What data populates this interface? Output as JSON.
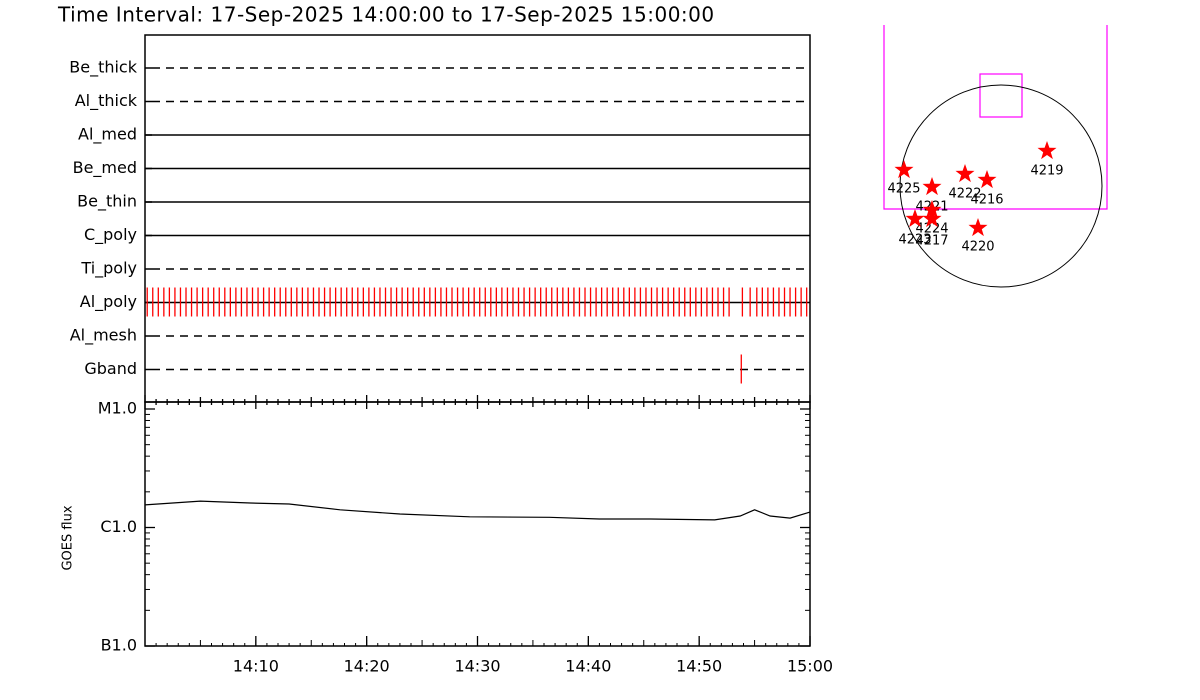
{
  "chart_data": [
    {
      "type": "timeline",
      "title": "Time Interval: 17-Sep-2025 14:00:00 to 17-Sep-2025 15:00:00",
      "categories": [
        "Be_thick",
        "Al_thick",
        "Al_med",
        "Be_med",
        "Be_thin",
        "C_poly",
        "Ti_poly",
        "Al_poly",
        "Al_mesh",
        "Gband"
      ],
      "line_styles": [
        "dashed",
        "dashed",
        "solid",
        "solid",
        "solid",
        "solid",
        "dashed",
        "solid",
        "dashed",
        "dashed"
      ],
      "events": [
        [],
        [],
        [],
        [],
        [],
        [],
        [],
        [
          0.2,
          0.7,
          1.2,
          1.7,
          2.2,
          2.7,
          3.2,
          3.7,
          4.2,
          4.7,
          5.2,
          5.7,
          6.2,
          6.7,
          7.2,
          7.7,
          8.2,
          8.7,
          9.2,
          9.7,
          10.2,
          10.7,
          11.2,
          11.7,
          12.2,
          12.7,
          13.2,
          13.7,
          14.2,
          14.7,
          15.2,
          15.7,
          16.2,
          16.7,
          17.2,
          17.7,
          18.2,
          18.7,
          19.2,
          19.7,
          20.2,
          20.7,
          21.2,
          21.7,
          22.2,
          22.7,
          23.2,
          23.7,
          24.2,
          24.7,
          25.2,
          25.7,
          26.2,
          26.7,
          27.2,
          27.7,
          28.2,
          28.7,
          29.2,
          29.7,
          30.2,
          30.7,
          31.2,
          31.7,
          32.2,
          32.7,
          33.2,
          33.7,
          34.2,
          34.7,
          35.2,
          35.7,
          36.2,
          36.7,
          37.2,
          37.7,
          38.2,
          38.7,
          39.2,
          39.7,
          40.2,
          40.7,
          41.2,
          41.7,
          42.2,
          42.7,
          43.2,
          43.7,
          44.2,
          44.7,
          45.2,
          45.7,
          46.2,
          46.7,
          47.2,
          47.7,
          48.2,
          48.7,
          49.2,
          49.7,
          50.2,
          50.7,
          51.2,
          51.7,
          52.2,
          52.7,
          53.9,
          54.6,
          55.2,
          55.7,
          56.2,
          56.7,
          57.2,
          57.7,
          58.2,
          58.7,
          59.2,
          59.7
        ],
        [],
        [
          53.8
        ]
      ],
      "event_color": "#ff0000",
      "xlim": [
        0,
        60
      ]
    },
    {
      "type": "line",
      "ylabel": "GOES flux",
      "x": [
        0,
        5,
        9.5,
        13,
        17.6,
        23,
        29.3,
        36.5,
        41,
        45.6,
        51.4,
        53.7,
        55,
        56.4,
        58.2,
        60
      ],
      "values": [
        1.55e-06,
        1.67e-06,
        1.61e-06,
        1.58e-06,
        1.41e-06,
        1.3e-06,
        1.23e-06,
        1.22e-06,
        1.18e-06,
        1.18e-06,
        1.16e-06,
        1.25e-06,
        1.41e-06,
        1.25e-06,
        1.2e-06,
        1.35e-06
      ],
      "color": "#000000",
      "log_y": true,
      "ylim": [
        1e-07,
        1e-05
      ],
      "yticks": [
        {
          "value": 1e-07,
          "label": "B1.0"
        },
        {
          "value": 1e-06,
          "label": "C1.0"
        },
        {
          "value": 1e-05,
          "label": "M1.0"
        }
      ],
      "xlim": [
        0,
        60
      ],
      "xticks": [
        {
          "value": 10,
          "label": "14:10"
        },
        {
          "value": 20,
          "label": "14:20"
        },
        {
          "value": 30,
          "label": "14:30"
        },
        {
          "value": 40,
          "label": "14:40"
        },
        {
          "value": 50,
          "label": "14:50"
        },
        {
          "value": 60,
          "label": "15:00"
        }
      ]
    },
    {
      "type": "map",
      "labels": [
        "4219",
        "4225",
        "4222",
        "4216",
        "4221",
        "4220",
        "4224",
        "4223",
        "4217"
      ],
      "color": "#ff0000",
      "frame_color": "#ff00ff"
    }
  ]
}
